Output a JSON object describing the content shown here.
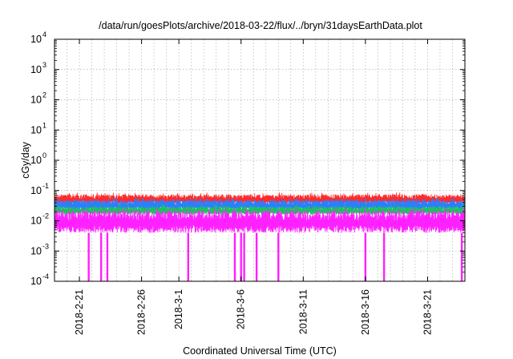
{
  "chart_data": {
    "type": "line",
    "title": "/data/run/goesPlots/archive/2018-03-22/flux/../bryn/31daysEarthData.plot",
    "xlabel": "Coordinated Universal Time (UTC)",
    "ylabel": "cGy/day",
    "yscale": "log",
    "ylim": [
      0.0001,
      10000
    ],
    "xlim": [
      "2018-02-19",
      "2018-03-24"
    ],
    "grid": true,
    "legend": "none",
    "x_ticks": [
      "2018-2-21",
      "2018-2-26",
      "2018-3-1",
      "2018-3-6",
      "2018-3-11",
      "2018-3-16",
      "2018-3-21"
    ],
    "y_ticks": [
      {
        "value": 0.0001,
        "base": "10",
        "exp": "-4"
      },
      {
        "value": 0.001,
        "base": "10",
        "exp": "-3"
      },
      {
        "value": 0.01,
        "base": "10",
        "exp": "-2"
      },
      {
        "value": 0.1,
        "base": "10",
        "exp": "-1"
      },
      {
        "value": 1,
        "base": "10",
        "exp": "0"
      },
      {
        "value": 10,
        "base": "10",
        "exp": "1"
      },
      {
        "value": 100,
        "base": "10",
        "exp": "2"
      },
      {
        "value": 1000,
        "base": "10",
        "exp": "3"
      },
      {
        "value": 10000,
        "base": "10",
        "exp": "4"
      }
    ],
    "series": [
      {
        "color": "#ff2a2a",
        "band": [
          0.035,
          0.075
        ]
      },
      {
        "color": "#2a7fff",
        "band": [
          0.022,
          0.05
        ]
      },
      {
        "color": "#20c060",
        "band": [
          0.016,
          0.03
        ]
      },
      {
        "color": "#ff20ff",
        "band": [
          0.004,
          0.022
        ],
        "dropouts": [
          "2018-02-21T18:00",
          "2018-02-22T18:00",
          "2018-02-23T06:00",
          "2018-03-01T18:00",
          "2018-03-05T12:00",
          "2018-03-06T00:00",
          "2018-03-06T06:00",
          "2018-03-07T06:00",
          "2018-03-09T00:00",
          "2018-03-16T00:00",
          "2018-03-17T12:00",
          "2018-03-23T18:00"
        ]
      }
    ]
  }
}
